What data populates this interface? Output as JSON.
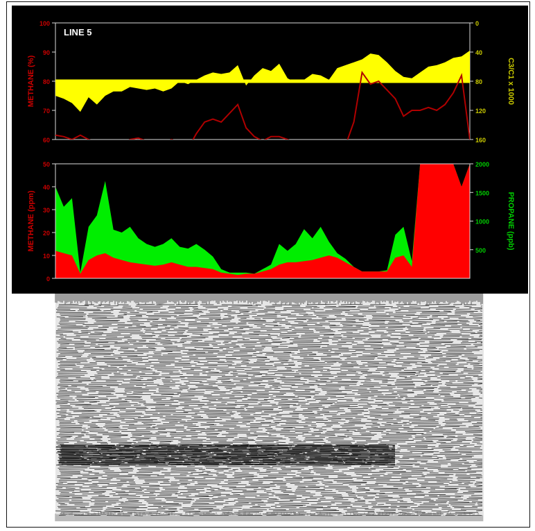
{
  "panel_title": "LINE 5",
  "colors": {
    "background": "#000000",
    "methane_upper": "#b00000",
    "ratio_fill": "#ffff00",
    "methane_lower": "#ff0000",
    "propane_fill": "#00ee00",
    "axis_left": "#cc0000",
    "axis_right_top": "#cccc00",
    "axis_right_bottom": "#00cc00",
    "frame_line": "#dddddd"
  },
  "chart_data": [
    {
      "type": "line",
      "title": "LINE 5",
      "ylabel": "METHANE (%)",
      "ylim": [
        60,
        100
      ],
      "yticks": [
        "100",
        "90",
        "80",
        "70",
        "60"
      ],
      "ylabel_right": "C3/C1 x 1000",
      "ylim_right": [
        0,
        160
      ],
      "right_inverted": true,
      "yticks_right": [
        "0",
        "40",
        "80",
        "120",
        "160"
      ],
      "x": [
        0,
        2,
        4,
        6,
        8,
        10,
        12,
        14,
        16,
        18,
        20,
        22,
        24,
        26,
        28,
        30,
        32,
        34,
        36,
        38,
        40,
        42,
        44,
        46,
        48,
        50,
        52,
        54,
        56,
        58,
        60,
        62,
        64,
        66,
        68,
        70,
        72,
        74,
        76,
        78,
        80,
        82,
        84,
        86,
        88,
        90,
        92,
        94,
        96,
        98,
        100
      ],
      "series": [
        {
          "name": "METHANE (%)",
          "axis": "left",
          "values": [
            61.5,
            61,
            60,
            61.5,
            60,
            59,
            58,
            57,
            58,
            60,
            60.5,
            59.5,
            58,
            58.5,
            60,
            59,
            57,
            62,
            66,
            67,
            66,
            69,
            72,
            64,
            61,
            59.5,
            61,
            61,
            60,
            59,
            58,
            58,
            57,
            56,
            56,
            58,
            66,
            83,
            79,
            80,
            77,
            74,
            68,
            70,
            70,
            71,
            70,
            72,
            76,
            82,
            60
          ]
        },
        {
          "name": "C3/C1 x 1000",
          "axis": "right",
          "values": [
            100,
            104,
            110,
            122,
            102,
            112,
            100,
            94,
            94,
            88,
            90,
            92,
            90,
            94,
            90,
            80,
            84,
            78,
            72,
            68,
            70,
            68,
            58,
            86,
            72,
            62,
            66,
            56,
            76,
            82,
            78,
            70,
            72,
            78,
            62,
            58,
            54,
            50,
            42,
            44,
            54,
            66,
            74,
            76,
            68,
            60,
            58,
            54,
            48,
            46,
            38
          ]
        }
      ],
      "ratio_baseline": 80
    },
    {
      "type": "area",
      "ylabel": "METHANE (ppm)",
      "ylim": [
        0,
        50
      ],
      "yticks": [
        "50",
        "40",
        "30",
        "20",
        "10",
        "0"
      ],
      "ylabel_right": "PROPANE (ppb)",
      "ylim_right": [
        0,
        2000
      ],
      "yticks_right": [
        "2000",
        "1500",
        "1000",
        "500"
      ],
      "x": [
        0,
        2,
        4,
        6,
        8,
        10,
        12,
        14,
        16,
        18,
        20,
        22,
        24,
        26,
        28,
        30,
        32,
        34,
        36,
        38,
        40,
        42,
        44,
        46,
        48,
        50,
        52,
        54,
        56,
        58,
        60,
        62,
        64,
        66,
        68,
        70,
        72,
        74,
        76,
        78,
        80,
        82,
        84,
        86,
        88,
        90,
        92,
        94,
        96,
        98,
        100
      ],
      "series": [
        {
          "name": "METHANE (ppm)",
          "axis": "left",
          "values": [
            12,
            11,
            10,
            2,
            8,
            10,
            11,
            9,
            8,
            7,
            6.5,
            6,
            5.5,
            6,
            7,
            6,
            5,
            5,
            4.5,
            4,
            2.5,
            2,
            1.5,
            2,
            2,
            3,
            4,
            6,
            7,
            7,
            7.5,
            8,
            9,
            10,
            9,
            7,
            5,
            3,
            3,
            3,
            3,
            9,
            10,
            5,
            50,
            50,
            50,
            50,
            50,
            40,
            50
          ]
        },
        {
          "name": "PROPANE (ppb)",
          "axis": "right",
          "values": [
            1600,
            1250,
            1400,
            100,
            900,
            1100,
            1700,
            850,
            800,
            900,
            700,
            600,
            550,
            600,
            700,
            550,
            520,
            600,
            500,
            380,
            160,
            100,
            100,
            100,
            80,
            160,
            240,
            600,
            480,
            600,
            860,
            700,
            900,
            640,
            440,
            340,
            160,
            120,
            100,
            100,
            140,
            760,
            900,
            300,
            2000,
            2000,
            2000,
            1600,
            1400,
            1300,
            2000
          ]
        }
      ]
    }
  ]
}
